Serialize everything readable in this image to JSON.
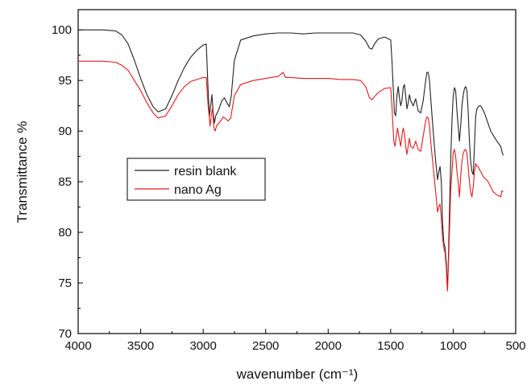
{
  "chart_data": {
    "type": "line",
    "title": "",
    "xlabel": "wavenumber (cm⁻¹)",
    "ylabel": "Transmittance %",
    "xlim": [
      4000,
      500
    ],
    "ylim": [
      70,
      102
    ],
    "x_reversed": true,
    "x_ticks": [
      4000,
      3500,
      3000,
      2500,
      2000,
      1500,
      1000,
      500
    ],
    "y_ticks": [
      70,
      75,
      80,
      85,
      90,
      95,
      100
    ],
    "grid": false,
    "legend_position": "left",
    "series": [
      {
        "name": "resin blank",
        "color": "#222222",
        "points": [
          [
            4000,
            100.0
          ],
          [
            3800,
            100.0
          ],
          [
            3700,
            99.9
          ],
          [
            3650,
            99.5
          ],
          [
            3600,
            98.6
          ],
          [
            3550,
            97.0
          ],
          [
            3500,
            95.2
          ],
          [
            3450,
            93.6
          ],
          [
            3400,
            92.4
          ],
          [
            3360,
            91.9
          ],
          [
            3300,
            92.2
          ],
          [
            3250,
            93.5
          ],
          [
            3200,
            95.0
          ],
          [
            3150,
            96.3
          ],
          [
            3100,
            97.3
          ],
          [
            3050,
            98.0
          ],
          [
            3000,
            98.5
          ],
          [
            2975,
            98.6
          ],
          [
            2960,
            94.0
          ],
          [
            2950,
            91.5
          ],
          [
            2940,
            92.5
          ],
          [
            2930,
            93.6
          ],
          [
            2920,
            91.8
          ],
          [
            2910,
            90.8
          ],
          [
            2900,
            91.5
          ],
          [
            2880,
            92.0
          ],
          [
            2850,
            93.0
          ],
          [
            2830,
            93.3
          ],
          [
            2810,
            92.8
          ],
          [
            2790,
            92.4
          ],
          [
            2775,
            93.5
          ],
          [
            2750,
            97.0
          ],
          [
            2700,
            99.0
          ],
          [
            2600,
            99.4
          ],
          [
            2500,
            99.6
          ],
          [
            2400,
            99.7
          ],
          [
            2300,
            99.7
          ],
          [
            2200,
            99.6
          ],
          [
            2100,
            99.7
          ],
          [
            2000,
            99.7
          ],
          [
            1900,
            99.7
          ],
          [
            1800,
            99.7
          ],
          [
            1740,
            99.5
          ],
          [
            1700,
            98.9
          ],
          [
            1670,
            98.2
          ],
          [
            1650,
            98.1
          ],
          [
            1630,
            98.6
          ],
          [
            1600,
            99.1
          ],
          [
            1550,
            99.3
          ],
          [
            1500,
            99.0
          ],
          [
            1490,
            97.0
          ],
          [
            1470,
            91.8
          ],
          [
            1460,
            91.5
          ],
          [
            1450,
            93.5
          ],
          [
            1440,
            94.4
          ],
          [
            1430,
            93.3
          ],
          [
            1420,
            92.5
          ],
          [
            1410,
            93.0
          ],
          [
            1400,
            94.3
          ],
          [
            1390,
            94.6
          ],
          [
            1380,
            93.5
          ],
          [
            1370,
            92.2
          ],
          [
            1360,
            92.8
          ],
          [
            1350,
            93.6
          ],
          [
            1340,
            93.0
          ],
          [
            1320,
            92.5
          ],
          [
            1300,
            93.2
          ],
          [
            1280,
            92.0
          ],
          [
            1260,
            91.8
          ],
          [
            1240,
            93.0
          ],
          [
            1220,
            95.0
          ],
          [
            1210,
            95.8
          ],
          [
            1200,
            95.8
          ],
          [
            1190,
            95.0
          ],
          [
            1180,
            93.3
          ],
          [
            1160,
            90.0
          ],
          [
            1140,
            87.0
          ],
          [
            1125,
            85.2
          ],
          [
            1115,
            86.0
          ],
          [
            1105,
            86.5
          ],
          [
            1095,
            85.0
          ],
          [
            1085,
            81.0
          ],
          [
            1075,
            79.0
          ],
          [
            1065,
            78.5
          ],
          [
            1055,
            77.0
          ],
          [
            1050,
            75.5
          ],
          [
            1045,
            74.8
          ],
          [
            1040,
            76.5
          ],
          [
            1030,
            82.0
          ],
          [
            1020,
            87.0
          ],
          [
            1010,
            91.0
          ],
          [
            1000,
            93.4
          ],
          [
            990,
            94.3
          ],
          [
            980,
            94.0
          ],
          [
            970,
            92.0
          ],
          [
            960,
            90.5
          ],
          [
            950,
            89.0
          ],
          [
            940,
            90.5
          ],
          [
            930,
            92.5
          ],
          [
            920,
            93.5
          ],
          [
            910,
            94.2
          ],
          [
            900,
            94.4
          ],
          [
            890,
            94.0
          ],
          [
            880,
            92.0
          ],
          [
            870,
            89.0
          ],
          [
            860,
            87.0
          ],
          [
            850,
            86.0
          ],
          [
            840,
            85.7
          ],
          [
            830,
            88.5
          ],
          [
            820,
            91.5
          ],
          [
            810,
            92.2
          ],
          [
            800,
            92.4
          ],
          [
            790,
            92.5
          ],
          [
            780,
            92.5
          ],
          [
            770,
            92.3
          ],
          [
            750,
            91.8
          ],
          [
            700,
            90.0
          ],
          [
            650,
            89.0
          ],
          [
            620,
            88.5
          ],
          [
            610,
            88.0
          ],
          [
            600,
            87.6
          ]
        ]
      },
      {
        "name": "nano Ag",
        "color": "#e31a1c",
        "points": [
          [
            4000,
            96.9
          ],
          [
            3800,
            96.9
          ],
          [
            3700,
            96.8
          ],
          [
            3650,
            96.5
          ],
          [
            3600,
            96.0
          ],
          [
            3550,
            95.0
          ],
          [
            3500,
            94.0
          ],
          [
            3450,
            92.8
          ],
          [
            3400,
            91.8
          ],
          [
            3360,
            91.3
          ],
          [
            3300,
            91.5
          ],
          [
            3250,
            92.5
          ],
          [
            3200,
            93.6
          ],
          [
            3150,
            94.4
          ],
          [
            3100,
            94.9
          ],
          [
            3050,
            95.1
          ],
          [
            3000,
            95.3
          ],
          [
            2975,
            95.3
          ],
          [
            2960,
            92.5
          ],
          [
            2945,
            90.5
          ],
          [
            2935,
            91.5
          ],
          [
            2925,
            92.3
          ],
          [
            2915,
            90.4
          ],
          [
            2905,
            90.0
          ],
          [
            2890,
            90.6
          ],
          [
            2860,
            91.0
          ],
          [
            2840,
            91.4
          ],
          [
            2820,
            91.2
          ],
          [
            2800,
            91.0
          ],
          [
            2780,
            91.3
          ],
          [
            2750,
            93.5
          ],
          [
            2700,
            94.6
          ],
          [
            2600,
            95.0
          ],
          [
            2500,
            95.2
          ],
          [
            2400,
            95.4
          ],
          [
            2360,
            95.8
          ],
          [
            2340,
            95.3
          ],
          [
            2300,
            95.3
          ],
          [
            2200,
            95.2
          ],
          [
            2100,
            95.2
          ],
          [
            2000,
            95.2
          ],
          [
            1900,
            95.1
          ],
          [
            1800,
            95.1
          ],
          [
            1740,
            95.0
          ],
          [
            1700,
            94.4
          ],
          [
            1670,
            93.3
          ],
          [
            1650,
            93.1
          ],
          [
            1630,
            93.4
          ],
          [
            1600,
            93.8
          ],
          [
            1550,
            94.2
          ],
          [
            1500,
            94.3
          ],
          [
            1490,
            92.5
          ],
          [
            1475,
            89.0
          ],
          [
            1465,
            88.5
          ],
          [
            1455,
            89.5
          ],
          [
            1445,
            90.3
          ],
          [
            1435,
            89.5
          ],
          [
            1420,
            88.5
          ],
          [
            1410,
            89.5
          ],
          [
            1400,
            90.3
          ],
          [
            1390,
            89.8
          ],
          [
            1380,
            88.5
          ],
          [
            1370,
            87.7
          ],
          [
            1360,
            88.5
          ],
          [
            1350,
            89.3
          ],
          [
            1340,
            88.5
          ],
          [
            1320,
            88.3
          ],
          [
            1300,
            89.0
          ],
          [
            1280,
            88.2
          ],
          [
            1260,
            88.0
          ],
          [
            1240,
            89.5
          ],
          [
            1220,
            91.0
          ],
          [
            1210,
            91.4
          ],
          [
            1200,
            91.3
          ],
          [
            1190,
            90.5
          ],
          [
            1180,
            89.0
          ],
          [
            1160,
            86.5
          ],
          [
            1140,
            84.0
          ],
          [
            1125,
            82.0
          ],
          [
            1115,
            82.5
          ],
          [
            1105,
            82.8
          ],
          [
            1095,
            81.5
          ],
          [
            1085,
            79.5
          ],
          [
            1075,
            78.5
          ],
          [
            1065,
            78.0
          ],
          [
            1055,
            76.5
          ],
          [
            1050,
            75.0
          ],
          [
            1045,
            74.2
          ],
          [
            1040,
            76.0
          ],
          [
            1030,
            80.0
          ],
          [
            1020,
            84.0
          ],
          [
            1010,
            86.0
          ],
          [
            1000,
            87.8
          ],
          [
            990,
            88.2
          ],
          [
            980,
            87.5
          ],
          [
            970,
            86.0
          ],
          [
            960,
            85.0
          ],
          [
            950,
            83.5
          ],
          [
            940,
            85.5
          ],
          [
            930,
            87.0
          ],
          [
            920,
            87.8
          ],
          [
            910,
            88.1
          ],
          [
            900,
            88.2
          ],
          [
            890,
            87.8
          ],
          [
            880,
            86.5
          ],
          [
            870,
            85.0
          ],
          [
            860,
            84.0
          ],
          [
            850,
            83.5
          ],
          [
            840,
            84.5
          ],
          [
            830,
            86.0
          ],
          [
            820,
            86.8
          ],
          [
            810,
            86.5
          ],
          [
            800,
            86.5
          ],
          [
            790,
            86.2
          ],
          [
            780,
            86.0
          ],
          [
            760,
            85.5
          ],
          [
            720,
            85.0
          ],
          [
            680,
            84.0
          ],
          [
            650,
            83.7
          ],
          [
            620,
            83.5
          ],
          [
            610,
            84.1
          ],
          [
            600,
            84.0
          ]
        ]
      }
    ]
  }
}
